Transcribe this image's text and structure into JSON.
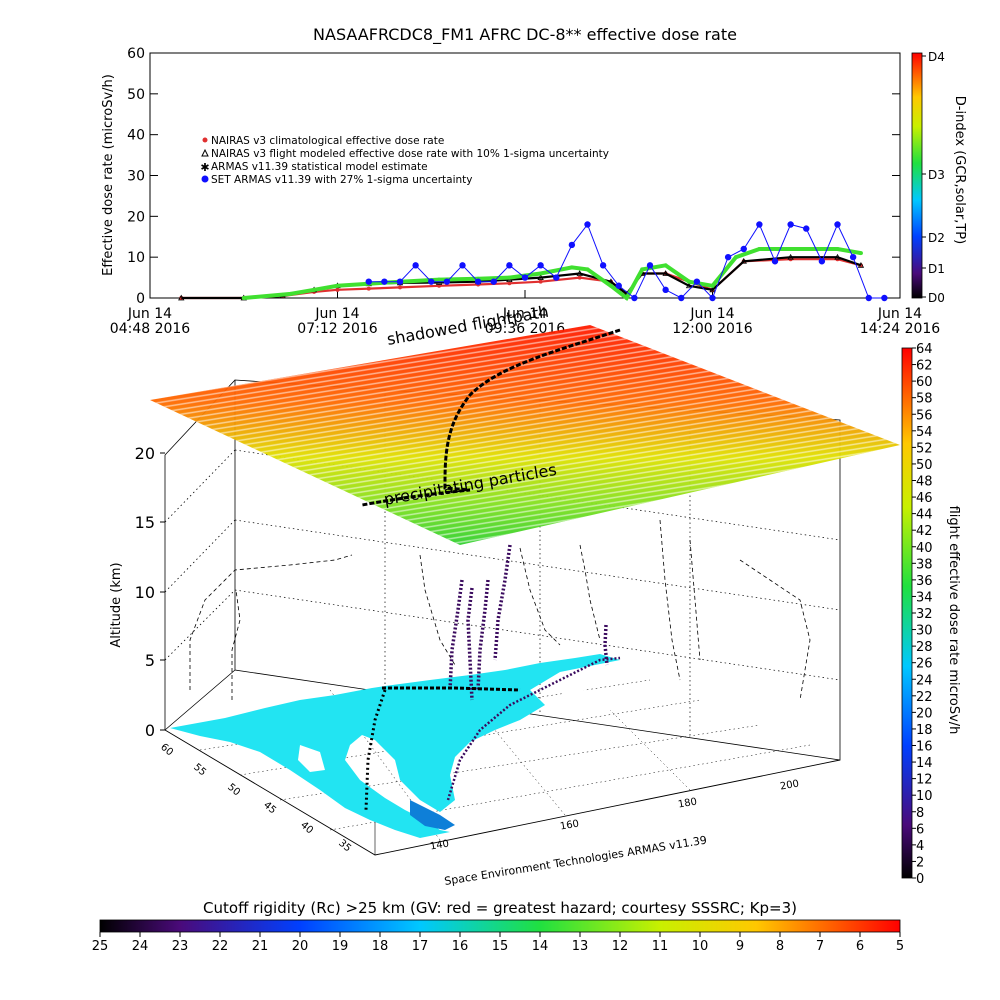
{
  "colors": {
    "nairas_clim": "#e03030",
    "nairas_flight": "#000000",
    "armas_stat": "#40e030",
    "set_armas": "#1010ff",
    "land": "#22e4f2"
  },
  "chart_data": [
    {
      "type": "line",
      "title": "NASAAFRCDC8_FM1 AFRC DC-8** effective dose rate",
      "ylabel": "Effective dose rate (microSv/h)",
      "ylim": [
        0,
        60
      ],
      "yticks": [
        "0",
        "10",
        "20",
        "30",
        "40",
        "50",
        "60"
      ],
      "x_range_hours": [
        4.8,
        14.4
      ],
      "xticks": [
        {
          "hour": 4.8,
          "line1": "Jun 14",
          "line2": "04:48 2016"
        },
        {
          "hour": 7.2,
          "line1": "Jun 14",
          "line2": "07:12 2016"
        },
        {
          "hour": 9.6,
          "line1": "Jun 14",
          "line2": "09:36 2016"
        },
        {
          "hour": 12.0,
          "line1": "Jun 14",
          "line2": "12:00 2016"
        },
        {
          "hour": 14.4,
          "line1": "Jun 14",
          "line2": "14:24 2016"
        }
      ],
      "legend": [
        {
          "key": "nairas_clim",
          "label": "NAIRAS v3 climatological effective dose rate"
        },
        {
          "key": "nairas_flight",
          "label": "NAIRAS v3 flight modeled effective dose rate with 10% 1-sigma uncertainty"
        },
        {
          "key": "armas_stat",
          "label": "ARMAS v11.39 statistical model estimate"
        },
        {
          "key": "set_armas",
          "label": "SET ARMAS v11.39 with 27% 1-sigma uncertainty"
        }
      ],
      "series": [
        {
          "key": "nairas_clim",
          "x": [
            5.2,
            6.0,
            6.5,
            6.9,
            7.2,
            7.6,
            8.0,
            8.5,
            9.0,
            9.4,
            9.8,
            10.3,
            10.7,
            10.9,
            11.1,
            11.4,
            11.7,
            12.0,
            12.4,
            13.0,
            13.6,
            13.9
          ],
          "y": [
            0,
            0,
            0.5,
            1.5,
            2,
            2.3,
            2.6,
            3,
            3.3,
            3.6,
            4,
            5,
            4,
            1,
            6,
            6,
            4,
            2,
            9,
            9.5,
            9.5,
            8
          ]
        },
        {
          "key": "nairas_flight",
          "x": [
            5.2,
            6.0,
            6.5,
            6.9,
            7.2,
            7.6,
            8.0,
            8.5,
            9.0,
            9.4,
            9.8,
            10.3,
            10.7,
            10.9,
            11.1,
            11.4,
            11.7,
            12.0,
            12.4,
            13.0,
            13.6,
            13.9
          ],
          "y": [
            0,
            0,
            0.5,
            2,
            3,
            3.5,
            3.7,
            3.8,
            4,
            4.5,
            5,
            6,
            4,
            1,
            6,
            6,
            3,
            2,
            9,
            10,
            10,
            8
          ]
        },
        {
          "key": "armas_stat",
          "x": [
            6.0,
            6.6,
            6.9,
            7.2,
            7.6,
            8.0,
            8.5,
            9.0,
            9.4,
            9.8,
            10.2,
            10.4,
            10.7,
            10.9,
            11.1,
            11.4,
            11.7,
            12.0,
            12.3,
            12.6,
            13.0,
            13.6,
            13.9
          ],
          "y": [
            0,
            1,
            2,
            3,
            3.5,
            4,
            4.5,
            4.7,
            5,
            6,
            7.5,
            7,
            3,
            0,
            7,
            8,
            4,
            3,
            10,
            12,
            12,
            12,
            11
          ]
        },
        {
          "key": "set_armas",
          "x": [
            7.6,
            7.8,
            8.0,
            8.2,
            8.4,
            8.6,
            8.8,
            9.0,
            9.2,
            9.4,
            9.6,
            9.8,
            10.0,
            10.2,
            10.4,
            10.6,
            10.8,
            11.0,
            11.2,
            11.4,
            11.6,
            11.8,
            12.0,
            12.2,
            12.4,
            12.6,
            12.8,
            13.0,
            13.2,
            13.4,
            13.6,
            13.8,
            14.0,
            14.2
          ],
          "y": [
            4,
            4,
            4,
            8,
            4,
            4,
            8,
            4,
            4,
            8,
            5,
            8,
            5,
            13,
            18,
            8,
            3,
            0,
            8,
            2,
            0,
            4,
            0,
            10,
            12,
            18,
            9,
            18,
            17,
            9,
            18,
            10,
            0,
            0
          ]
        }
      ]
    },
    {
      "type": "scatter",
      "ylabel": "Altitude (km)",
      "zticks": [
        "0",
        "5",
        "10",
        "15",
        "20"
      ],
      "lat_ticks": [
        "60",
        "55",
        "50",
        "45",
        "40",
        "35"
      ],
      "lon_ticks": [
        "140",
        "160",
        "180",
        "200"
      ],
      "annotations": [
        "shadowed flightpath",
        "precipitating particles"
      ],
      "credit": "Space Environment Technologies ARMAS v11.39",
      "dose_colorbar": {
        "label": "flight effective dose rate microSv/h",
        "range": [
          0,
          64
        ],
        "ticks": [
          "0",
          "2",
          "4",
          "6",
          "8",
          "10",
          "12",
          "14",
          "16",
          "18",
          "20",
          "22",
          "24",
          "26",
          "28",
          "30",
          "32",
          "34",
          "36",
          "38",
          "40",
          "42",
          "44",
          "46",
          "48",
          "50",
          "52",
          "54",
          "56",
          "58",
          "60",
          "62",
          "64"
        ]
      },
      "dindex_colorbar": {
        "label": "D-index (GCR,solar,TP)",
        "ticks": [
          "D0",
          "D1",
          "D2",
          "D3",
          "D4"
        ]
      },
      "rigidity_colorbar": {
        "label": "Cutoff rigidity (Rc) >25 km (GV: red = greatest hazard; courtesy SSSRC; Kp=3)",
        "ticks": [
          "25",
          "24",
          "23",
          "22",
          "21",
          "20",
          "19",
          "18",
          "17",
          "16",
          "15",
          "14",
          "13",
          "12",
          "11",
          "10",
          "9",
          "8",
          "7",
          "6",
          "5"
        ]
      }
    }
  ]
}
